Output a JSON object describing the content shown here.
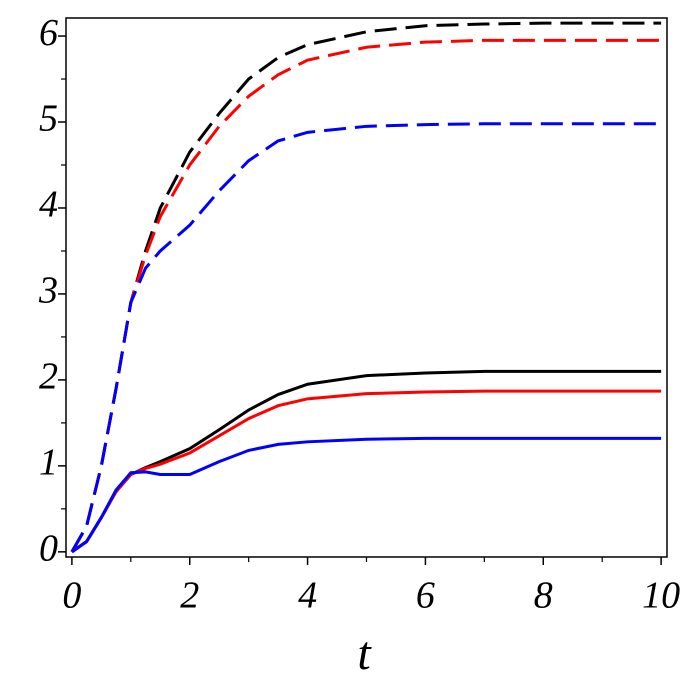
{
  "chart_data": {
    "type": "line",
    "x_label": "t",
    "x": [
      0,
      0.25,
      0.5,
      0.75,
      1,
      1.25,
      1.5,
      2,
      2.5,
      3,
      3.5,
      4,
      5,
      6,
      7,
      8,
      9,
      10
    ],
    "xlim": [
      -0.1,
      10.1
    ],
    "ylim": [
      -0.06,
      6.21
    ],
    "xticks": [
      0,
      2,
      4,
      6,
      8,
      10
    ],
    "yticks": [
      0,
      1,
      2,
      3,
      4,
      5,
      6
    ],
    "xminorticks": [
      1,
      3,
      5,
      7,
      9
    ],
    "yminorticks": [
      0.5,
      1.5,
      2.5,
      3.5,
      4.5,
      5.5
    ],
    "series": [
      {
        "color": "#000000",
        "style": "dashed",
        "values": [
          0,
          0.3,
          1.0,
          1.9,
          2.9,
          3.5,
          4.0,
          4.65,
          5.1,
          5.5,
          5.75,
          5.9,
          6.05,
          6.12,
          6.14,
          6.15,
          6.15,
          6.15
        ]
      },
      {
        "color": "#ff0000",
        "style": "dashed",
        "values": [
          0,
          0.3,
          1.0,
          1.9,
          2.9,
          3.45,
          3.9,
          4.5,
          4.95,
          5.3,
          5.55,
          5.72,
          5.87,
          5.93,
          5.95,
          5.95,
          5.95,
          5.95
        ]
      },
      {
        "color": "#0000ff",
        "style": "dashed",
        "values": [
          0,
          0.3,
          1.0,
          1.9,
          2.9,
          3.3,
          3.5,
          3.8,
          4.2,
          4.55,
          4.78,
          4.88,
          4.95,
          4.97,
          4.98,
          4.98,
          4.98,
          4.98
        ]
      },
      {
        "color": "#000000",
        "style": "solid",
        "values": [
          0,
          0.12,
          0.4,
          0.7,
          0.9,
          0.98,
          1.05,
          1.2,
          1.42,
          1.65,
          1.83,
          1.95,
          2.05,
          2.08,
          2.1,
          2.1,
          2.1,
          2.1
        ]
      },
      {
        "color": "#ff0000",
        "style": "solid",
        "values": [
          0,
          0.12,
          0.4,
          0.7,
          0.9,
          0.97,
          1.02,
          1.15,
          1.35,
          1.55,
          1.7,
          1.78,
          1.84,
          1.86,
          1.87,
          1.87,
          1.87,
          1.87
        ]
      },
      {
        "color": "#0000ff",
        "style": "solid",
        "values": [
          0,
          0.12,
          0.4,
          0.72,
          0.92,
          0.93,
          0.9,
          0.9,
          1.05,
          1.18,
          1.25,
          1.28,
          1.31,
          1.32,
          1.32,
          1.32,
          1.32,
          1.32
        ]
      }
    ]
  }
}
